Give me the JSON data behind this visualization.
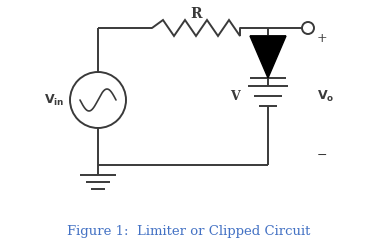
{
  "title": "Figure 1:  Limiter or Clipped Circuit",
  "title_color": "#4472C4",
  "title_fontsize": 9.5,
  "bg_color": "#ffffff",
  "line_color": "#3a3a3a",
  "line_width": 1.4,
  "figsize": [
    3.77,
    2.5
  ],
  "dpi": 100
}
